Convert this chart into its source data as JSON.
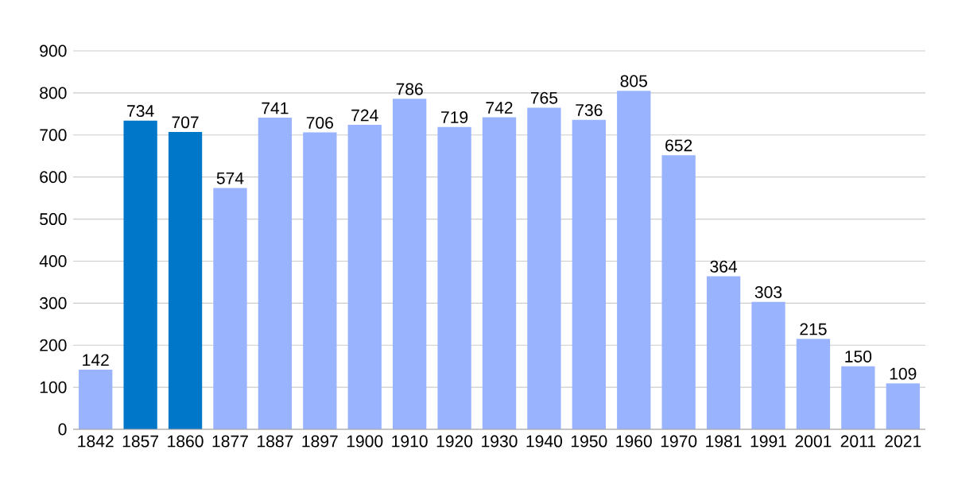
{
  "chart_data": {
    "type": "bar",
    "categories": [
      "1842",
      "1857",
      "1860",
      "1877",
      "1887",
      "1897",
      "1900",
      "1910",
      "1920",
      "1930",
      "1940",
      "1950",
      "1960",
      "1970",
      "1981",
      "1991",
      "2001",
      "2011",
      "2021"
    ],
    "values": [
      142,
      734,
      707,
      574,
      741,
      706,
      724,
      786,
      719,
      742,
      765,
      736,
      805,
      652,
      364,
      303,
      215,
      150,
      109
    ],
    "colors": [
      "#99b3ff",
      "#0077c8",
      "#0077c8",
      "#99b3ff",
      "#99b3ff",
      "#99b3ff",
      "#99b3ff",
      "#99b3ff",
      "#99b3ff",
      "#99b3ff",
      "#99b3ff",
      "#99b3ff",
      "#99b3ff",
      "#99b3ff",
      "#99b3ff",
      "#99b3ff",
      "#99b3ff",
      "#99b3ff",
      "#99b3ff"
    ],
    "ylim": [
      0,
      900
    ],
    "yticks": [
      0,
      100,
      200,
      300,
      400,
      500,
      600,
      700,
      800,
      900
    ],
    "grid": "y",
    "data_labels": true
  }
}
